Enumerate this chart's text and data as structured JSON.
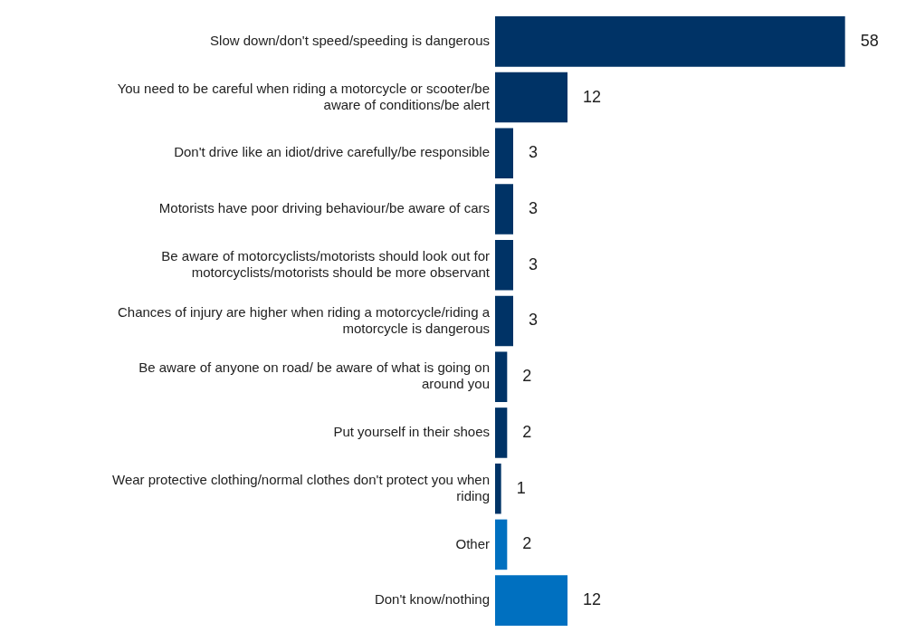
{
  "chart_data": {
    "type": "bar",
    "orientation": "horizontal",
    "data_labels": true,
    "legend": false,
    "categories": [
      "Slow down/don't speed/speeding is dangerous",
      "You need to be careful when riding a motorcycle or scooter/be aware of conditions/be alert",
      "Don't drive like an idiot/drive carefully/be responsible",
      "Motorists have poor driving behaviour/be aware of cars",
      "Be aware of motorcyclists/motorists should look out for motorcyclists/motorists should be more observant",
      "Chances of injury are higher when riding a motorcycle/riding a motorcycle is dangerous",
      "Be aware of anyone on road/ be aware of what is going on around you",
      "Put yourself in their shoes",
      "Wear protective clothing/normal clothes don't protect you when riding",
      "Other",
      "Don't know/nothing"
    ],
    "values": [
      58,
      12,
      3,
      3,
      3,
      3,
      2,
      2,
      1,
      2,
      12
    ],
    "colors": [
      "#003366",
      "#003366",
      "#003366",
      "#003366",
      "#003366",
      "#003366",
      "#003366",
      "#003366",
      "#003366",
      "#0070c0",
      "#0070c0"
    ]
  }
}
